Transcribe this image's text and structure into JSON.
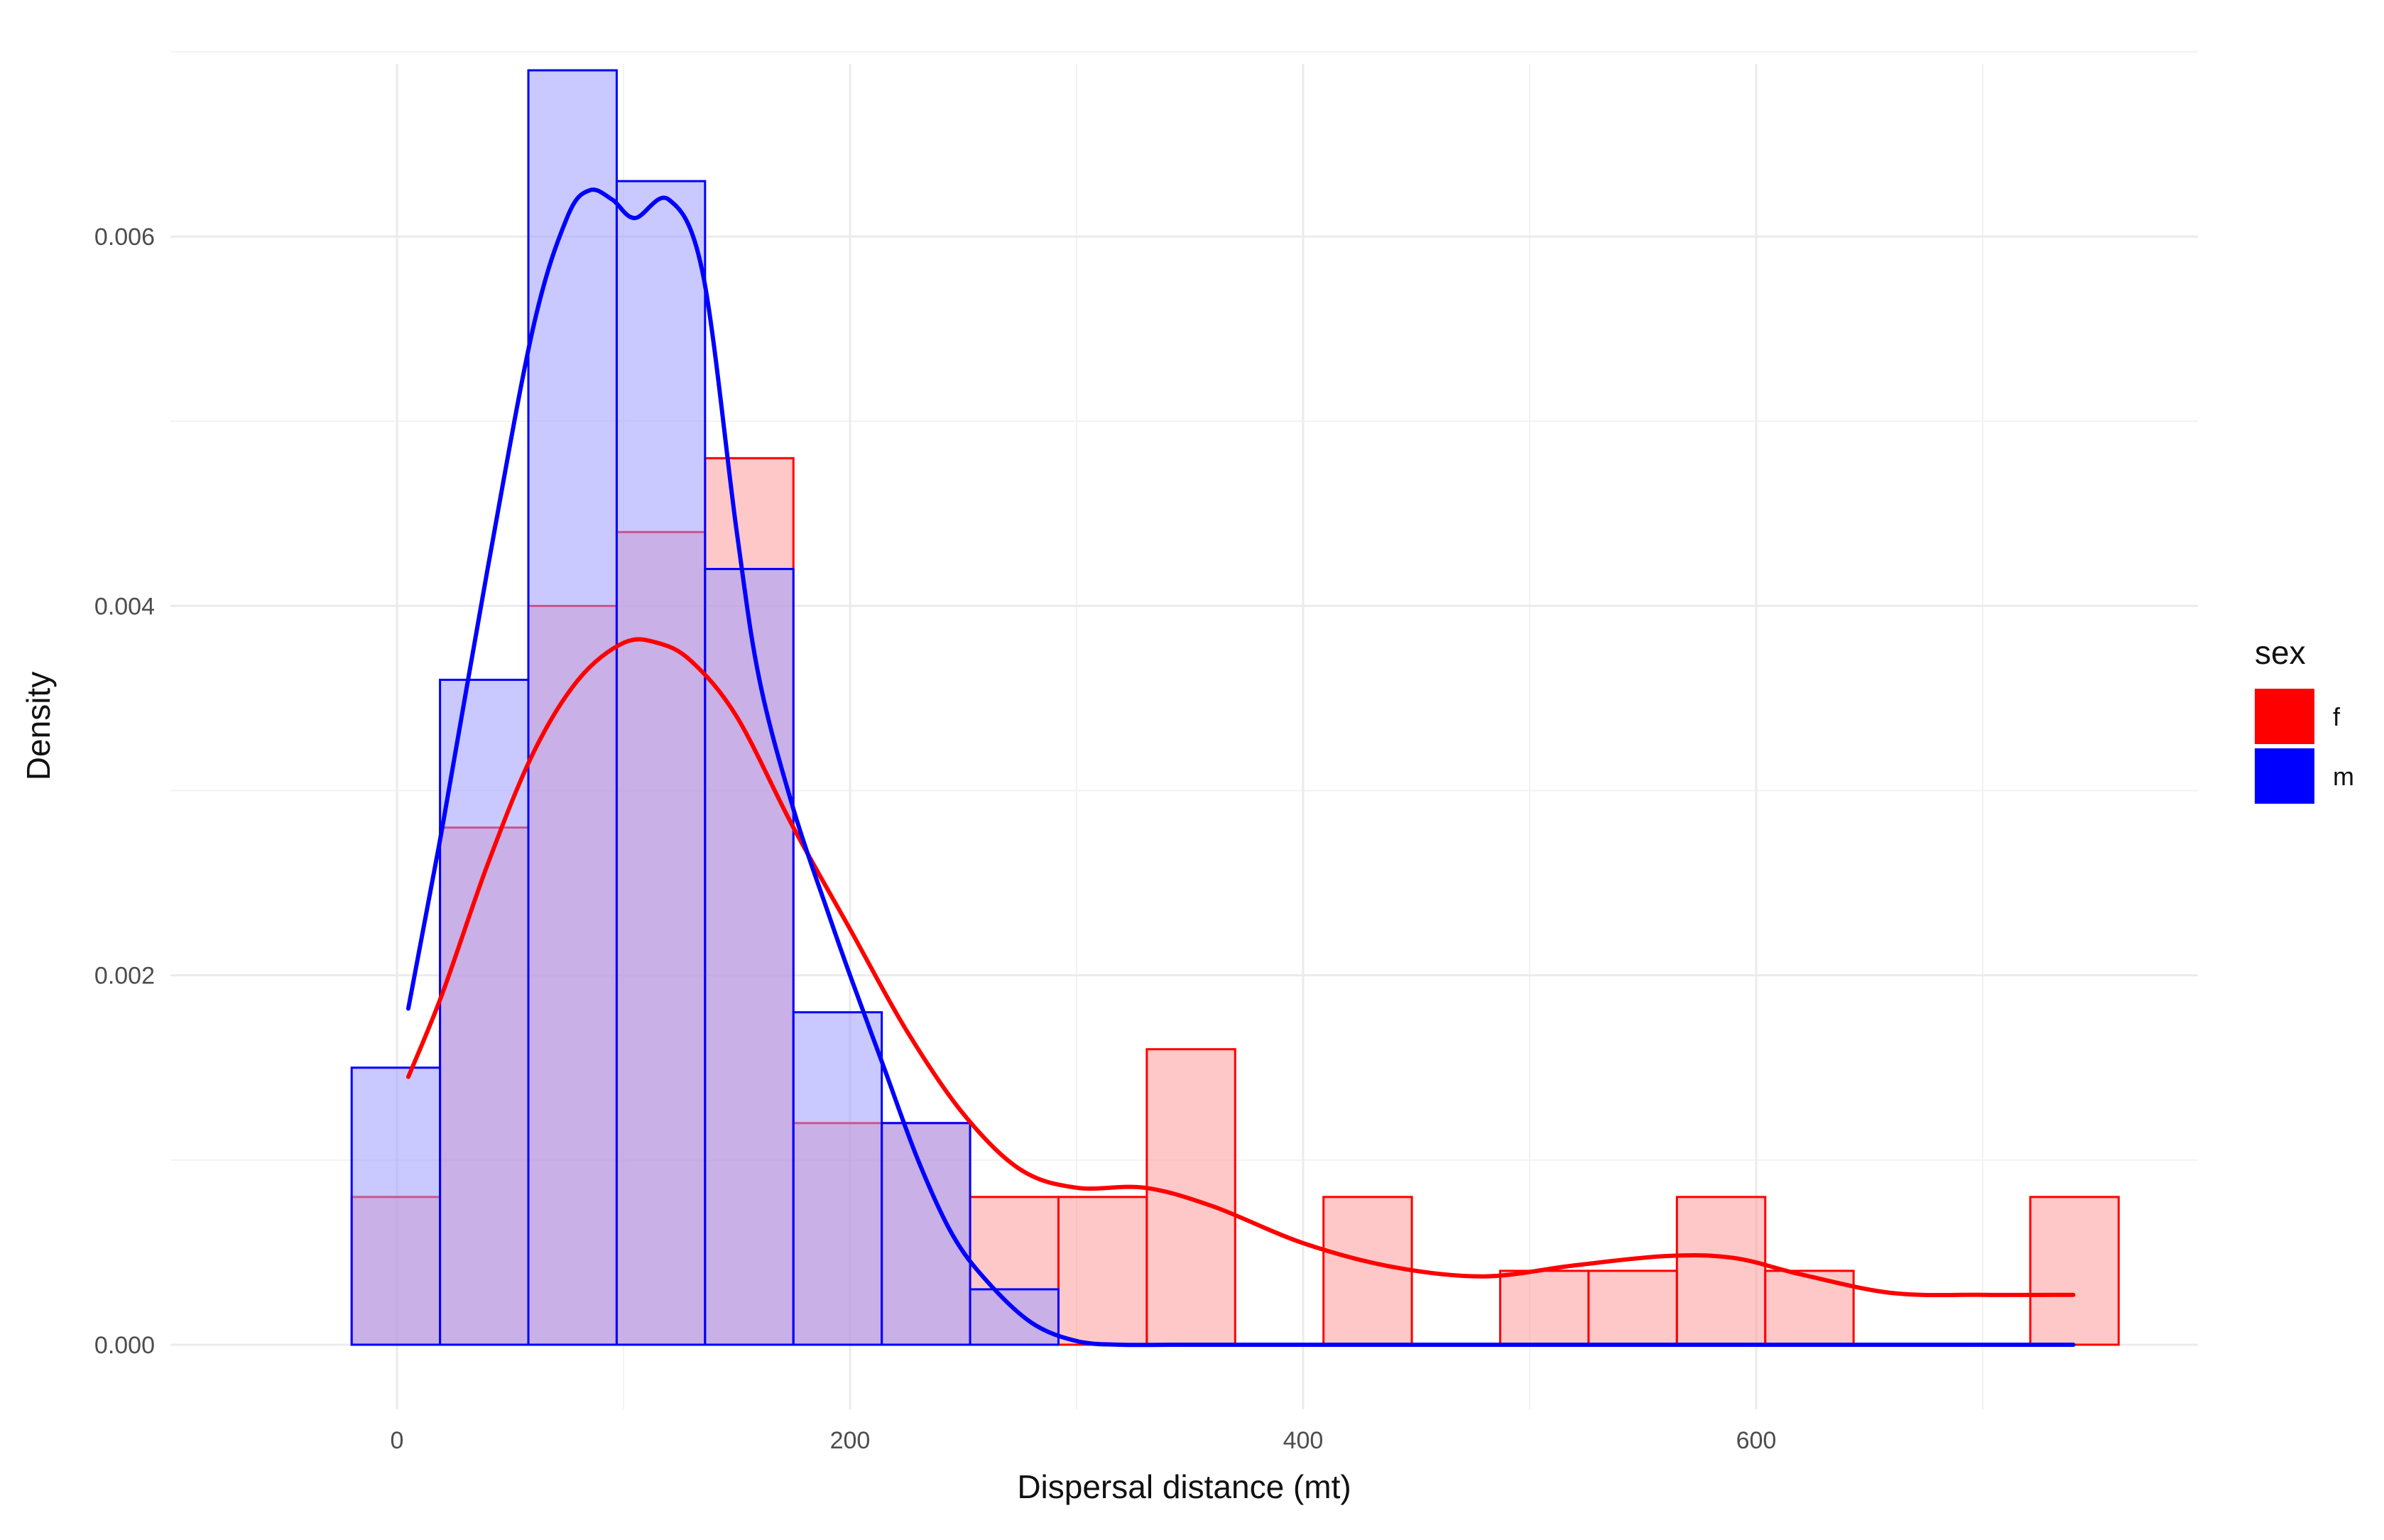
{
  "chart_data": {
    "type": "histogram",
    "title": "",
    "xlabel": "Dispersal distance (mt)",
    "ylabel": "Density",
    "xlim": [
      -100,
      795
    ],
    "ylim": [
      -0.00035,
      0.00705
    ],
    "x_ticks": [
      0,
      200,
      400,
      600
    ],
    "x_tick_labels": [
      "0",
      "200",
      "400",
      "600"
    ],
    "y_ticks": [
      0,
      0.002,
      0.004,
      0.006
    ],
    "y_tick_labels": [
      "0.000",
      "0.002",
      "0.004",
      "0.006"
    ],
    "grid": true,
    "legend": {
      "title": "sex",
      "position": "right"
    },
    "bin_edges": [
      -20,
      19,
      58,
      97,
      136,
      175,
      214,
      253,
      292,
      331,
      370,
      409,
      448,
      487,
      526,
      565,
      604,
      643,
      682,
      721,
      760
    ],
    "colors": {
      "f": "#ff0000",
      "m": "#0000ff"
    },
    "series": [
      {
        "name": "f",
        "color": "#ff0000",
        "fill": "#ff9a9a",
        "bar_values": [
          0.0008,
          0.0028,
          0.004,
          0.0044,
          0.0048,
          0.0012,
          0.0012,
          0.0008,
          0.0008,
          0.0016,
          0,
          0.0008,
          0,
          0.0004,
          0.0004,
          0.0008,
          0.0004,
          0,
          0,
          0.0008
        ],
        "density_x": [
          5,
          20,
          40,
          60,
          80,
          100,
          115,
          130,
          150,
          175,
          200,
          225,
          250,
          275,
          300,
          330,
          360,
          400,
          440,
          480,
          520,
          560,
          590,
          620,
          660,
          700,
          740
        ],
        "density_y": [
          0.00145,
          0.0019,
          0.0026,
          0.0032,
          0.0036,
          0.0038,
          0.0038,
          0.0037,
          0.0034,
          0.0028,
          0.00225,
          0.0017,
          0.00125,
          0.00095,
          0.00085,
          0.00085,
          0.00075,
          0.00055,
          0.00042,
          0.00037,
          0.00043,
          0.00048,
          0.00047,
          0.00038,
          0.00028,
          0.00027,
          0.00027
        ]
      },
      {
        "name": "m",
        "color": "#0000ff",
        "fill": "#9c9cff",
        "bar_values": [
          0.0015,
          0.0036,
          0.0069,
          0.0063,
          0.0042,
          0.0018,
          0.0012,
          0.0003,
          0,
          0,
          0,
          0,
          0,
          0,
          0,
          0,
          0,
          0,
          0,
          0
        ],
        "density_x": [
          5,
          20,
          40,
          60,
          75,
          85,
          95,
          105,
          120,
          135,
          150,
          160,
          175,
          190,
          200,
          215,
          230,
          245,
          260,
          280,
          300,
          320,
          350,
          400,
          500,
          600,
          740
        ],
        "density_y": [
          0.00182,
          0.0028,
          0.0042,
          0.0055,
          0.0061,
          0.00625,
          0.0062,
          0.0061,
          0.0062,
          0.0058,
          0.0044,
          0.0036,
          0.0029,
          0.00235,
          0.002,
          0.0015,
          0.001,
          0.0006,
          0.00035,
          0.00012,
          2e-05,
          0,
          0,
          0,
          0,
          0,
          0
        ]
      }
    ]
  }
}
